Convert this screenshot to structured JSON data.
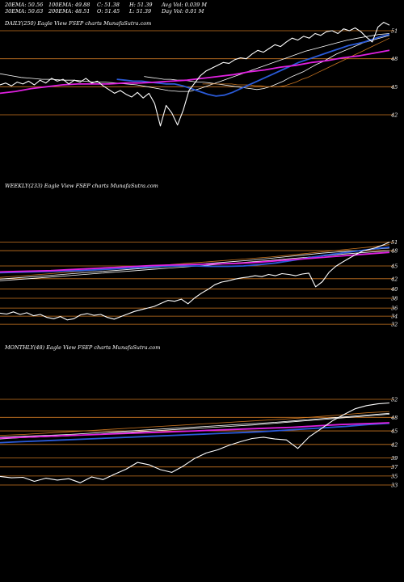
{
  "header": {
    "row1": [
      "20EMA: 50.56",
      "100EMA: 49.88",
      "C: 51.38",
      "H: 51.39",
      "Avg Vol: 0.039 M"
    ],
    "row2": [
      "30EMA: 50.63",
      "200EMA: 48.51",
      "O: 51.45",
      "L: 51.39",
      "Day Vol: 0.01 M"
    ]
  },
  "chart_data": [
    {
      "type": "line",
      "title": "DAILY(250) Eagle  View  FSEP charts MunafaSutra.com",
      "y_ticks": [
        51,
        48,
        45,
        42
      ],
      "ylim": [
        40.2,
        52.4
      ],
      "price": [
        45.2,
        45.4,
        45.1,
        45.5,
        45.3,
        45.6,
        45.2,
        45.7,
        45.4,
        45.9,
        45.6,
        45.8,
        45.3,
        45.7,
        45.5,
        45.9,
        45.4,
        45.6,
        45.1,
        44.7,
        44.3,
        44.6,
        44.2,
        43.9,
        44.4,
        43.8,
        44.3,
        43.2,
        40.8,
        43.0,
        42.2,
        40.9,
        42.5,
        44.6,
        45.4,
        46.2,
        46.7,
        47.0,
        47.3,
        47.6,
        47.5,
        47.9,
        48.1,
        48.0,
        48.5,
        48.9,
        48.7,
        49.1,
        49.5,
        49.3,
        49.8,
        50.2,
        50.0,
        50.4,
        50.2,
        50.7,
        50.5,
        50.9,
        51.0,
        50.7,
        51.2,
        51.0,
        51.3,
        50.9,
        50.3,
        49.8,
        51.4,
        51.9,
        51.6
      ],
      "series": [
        {
          "color": "#ffffff",
          "values": [
            46.4,
            46.2,
            46.0,
            45.9,
            45.8,
            45.8,
            45.7,
            45.7,
            45.6,
            45.5,
            45.5,
            45.4,
            45.3,
            45.2,
            45.0,
            44.8,
            44.6,
            44.5,
            44.5,
            44.8,
            45.2,
            45.6,
            46.0,
            46.4,
            46.8,
            47.2,
            47.6,
            48.0,
            48.4,
            48.8,
            49.1,
            49.4,
            49.7,
            50.0,
            50.2,
            50.4,
            50.6,
            50.7
          ]
        },
        {
          "color": "#ffffff",
          "values": [
            46.1,
            46.0,
            45.9,
            45.8,
            45.8,
            45.7,
            45.7,
            45.6,
            45.5,
            45.5,
            45.4,
            45.3,
            45.2,
            45.1,
            45.0,
            44.9,
            44.8,
            44.7,
            44.8,
            45.0,
            45.3,
            45.6,
            46.0,
            46.3,
            46.6,
            47.0,
            47.4,
            47.7,
            48.1,
            48.5,
            48.8,
            49.1,
            49.4,
            49.7,
            49.9,
            50.1,
            50.3,
            50.5
          ]
        },
        {
          "color": "#cc7722",
          "values": [
            45.3,
            45.3,
            45.3,
            45.3,
            45.3,
            45.3,
            45.2,
            45.2,
            45.2,
            45.1,
            45.1,
            45.0,
            45.0,
            45.0,
            45.1,
            45.3,
            45.5,
            45.8,
            46.0,
            46.3,
            46.6,
            46.9,
            47.2,
            47.5,
            47.8,
            48.1,
            48.4,
            48.7,
            49.0,
            49.3,
            49.6,
            49.9,
            50.2
          ]
        },
        {
          "color": "#2a5ad8",
          "values": [
            45.8,
            45.7,
            45.6,
            45.6,
            45.5,
            45.4,
            45.3,
            45.3,
            45.1,
            44.8,
            44.5,
            44.2,
            44.0,
            44.1,
            44.4,
            44.8,
            45.2,
            45.6,
            46.0,
            46.4,
            46.8,
            47.2,
            47.6,
            47.9,
            48.2,
            48.5,
            48.8,
            49.1,
            49.4,
            49.6,
            49.8,
            50.1,
            50.4,
            50.6
          ]
        },
        {
          "color": "#e020e0",
          "values": [
            44.3,
            44.5,
            44.8,
            45.0,
            45.2,
            45.3,
            45.3,
            45.3,
            45.4,
            45.4,
            45.5,
            45.6,
            45.7,
            45.9,
            46.1,
            46.3,
            46.6,
            46.8,
            47.1,
            47.3,
            47.6,
            47.8,
            48.1,
            48.3,
            48.6,
            48.9
          ]
        }
      ]
    },
    {
      "type": "line",
      "title": "WEEKLY(233) Eagle  View  FSEP charts MunafaSutra.com",
      "y_ticks": [
        51,
        48,
        45,
        42,
        40,
        38,
        36,
        34,
        32
      ],
      "y_tick_values": [
        50.9,
        48.9,
        45.3,
        42.3,
        39.9,
        37.7,
        35.4,
        33.5,
        31.6
      ],
      "price": [
        34.2,
        34.0,
        34.5,
        33.9,
        34.3,
        33.6,
        33.9,
        33.2,
        32.9,
        33.4,
        32.6,
        32.9,
        33.8,
        34.1,
        33.7,
        33.9,
        33.2,
        32.8,
        33.4,
        34.0,
        34.6,
        35.0,
        35.4,
        35.8,
        36.5,
        37.2,
        37.0,
        37.5,
        36.4,
        37.8,
        38.9,
        39.8,
        40.9,
        41.5,
        41.8,
        42.2,
        42.5,
        42.7,
        43.0,
        42.8,
        43.3,
        43.0,
        43.5,
        43.3,
        43.0,
        43.4,
        43.6,
        40.4,
        41.6,
        43.8,
        45.2,
        46.2,
        47.1,
        48.0,
        48.8,
        49.2,
        49.6,
        50.2,
        50.9
      ],
      "series": [
        {
          "color": "#ffffff",
          "values": [
            42.2,
            42.5,
            42.8,
            43.1,
            43.4,
            43.7,
            44.0,
            44.3,
            44.6,
            44.9,
            45.2,
            45.5,
            45.8,
            46.1,
            46.4,
            46.7,
            47.1,
            47.5,
            47.9,
            48.3,
            48.6,
            48.9,
            49.2,
            49.5
          ]
        },
        {
          "color": "#ffffff",
          "values": [
            41.8,
            42.1,
            42.4,
            42.7,
            43.0,
            43.3,
            43.6,
            43.9,
            44.2,
            44.5,
            44.8,
            45.1,
            45.4,
            45.7,
            46.0,
            46.3,
            46.6,
            47.0,
            47.3,
            47.6,
            48.0,
            48.3,
            48.6,
            48.9
          ]
        },
        {
          "color": "#cc7722",
          "values": [
            42.6,
            42.9,
            43.2,
            43.5,
            43.8,
            44.1,
            44.4,
            44.7,
            45.0,
            45.3,
            45.6,
            45.9,
            46.2,
            46.5,
            46.8,
            47.1,
            47.4,
            47.8,
            48.2,
            48.6,
            49.0,
            49.4,
            49.8,
            50.3
          ]
        },
        {
          "color": "#2a5ad8",
          "values": [
            43.7,
            43.8,
            43.9,
            44.0,
            44.1,
            44.2,
            44.4,
            44.6,
            44.8,
            45.0,
            45.2,
            45.3,
            45.3,
            45.2,
            45.2,
            45.3,
            45.6,
            46.0,
            46.6,
            47.2,
            47.8,
            48.3,
            48.8,
            49.3,
            49.7
          ]
        },
        {
          "color": "#e020e0",
          "values": [
            43.9,
            44.0,
            44.1,
            44.2,
            44.4,
            44.6,
            44.8,
            45.0,
            45.2,
            45.4,
            45.5,
            45.6,
            45.7,
            45.8,
            45.9,
            46.1,
            46.4,
            46.7,
            47.0,
            47.3,
            47.6,
            47.9,
            48.2,
            48.5
          ]
        }
      ]
    },
    {
      "type": "line",
      "title": "MONTHLY(48) Eagle  View  FSEP charts MunafaSutra.com",
      "y_ticks": [
        52,
        48,
        45,
        42,
        39,
        37,
        35,
        33
      ],
      "y_tick_values": [
        52.0,
        48.0,
        45.0,
        42.0,
        39.0,
        37.0,
        35.0,
        33.0
      ],
      "price": [
        34.9,
        34.6,
        34.7,
        33.8,
        34.5,
        34.1,
        34.4,
        33.5,
        34.8,
        34.2,
        35.4,
        36.5,
        38.0,
        37.5,
        36.4,
        35.8,
        37.2,
        38.9,
        40.1,
        40.8,
        41.8,
        42.6,
        43.3,
        43.6,
        43.2,
        43.0,
        41.1,
        43.7,
        45.4,
        47.2,
        48.6,
        49.9,
        50.6,
        51.0,
        51.2
      ],
      "series": [
        {
          "color": "#ffffff",
          "values": [
            43.6,
            43.8,
            44.0,
            44.2,
            44.5,
            44.8,
            45.1,
            45.4,
            45.7,
            46.0,
            46.3,
            46.6,
            46.9,
            47.3,
            47.7,
            48.1,
            48.5,
            48.9
          ]
        },
        {
          "color": "#ffffff",
          "values": [
            43.2,
            43.5,
            43.7,
            43.9,
            44.2,
            44.5,
            44.8,
            45.1,
            45.4,
            45.7,
            46.0,
            46.3,
            46.7,
            47.1,
            47.5,
            47.9,
            48.3,
            48.7
          ]
        },
        {
          "color": "#cc7722",
          "values": [
            44.0,
            44.2,
            44.5,
            44.8,
            45.1,
            45.4,
            45.7,
            46.0,
            46.3,
            46.6,
            46.9,
            47.2,
            47.5,
            47.8,
            48.2,
            48.6,
            49.0,
            49.3
          ]
        },
        {
          "color": "#2a5ad8",
          "values": [
            42.4,
            42.6,
            42.8,
            43.0,
            43.2,
            43.4,
            43.6,
            43.8,
            44.0,
            44.2,
            44.4,
            44.6,
            44.8,
            45.1,
            45.4,
            45.7,
            46.0,
            46.4,
            46.7
          ]
        },
        {
          "color": "#e020e0",
          "values": [
            43.4,
            43.6,
            43.8,
            44.0,
            44.2,
            44.4,
            44.6,
            44.8,
            45.0,
            45.2,
            45.4,
            45.6,
            45.8,
            46.1,
            46.4,
            46.6,
            46.8
          ]
        }
      ]
    }
  ],
  "colors": {
    "background": "#000000",
    "grid": "#cc7722",
    "price": "#ffffff",
    "ema_fast": "#2a5ad8",
    "ema_slow": "#e020e0"
  }
}
